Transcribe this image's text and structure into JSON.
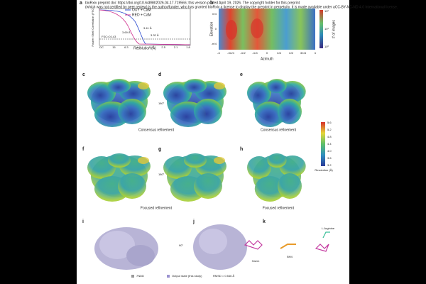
{
  "header": {
    "line1": "bioRxiv preprint doi: https://doi.org/10.64898/2026.04.17.719566; this version posted April 19, 2026. The copyright holder for this preprint",
    "line2": "(which was not certified by peer review) is the author/funder, who has granted bioRxiv a license to display the preprint in perpetuity. It is made available under aCC-BY-NC-ND 4.0 International license."
  },
  "panels": {
    "a": {
      "label": "a",
      "y_label": "Fourier Shell Correlation (FSC)",
      "x_label": "Resolution (Å)",
      "legend": [
        "OXY + CaM",
        "RED + CaM"
      ],
      "annotations": [
        "3.41 Å",
        "3.69 Å",
        "3.32 Å",
        "FSC=0.143"
      ],
      "x_ticks": [
        "DC",
        "15",
        "6.3",
        "4.2",
        "3.1",
        "2.5",
        "2.1",
        "1.8"
      ]
    },
    "b": {
      "label": "b",
      "y_label": "Elevation",
      "x_label": "Azimuth",
      "x_ticks": [
        "-π",
        "-3π/4",
        "-π/2",
        "-π/4",
        "0",
        "π/4",
        "π/2",
        "3π/4",
        "π"
      ],
      "y_ticks": [
        "π/4",
        "0",
        "-π/4"
      ],
      "colorbar_label": "# of images",
      "colorbar_ticks": [
        "10²",
        "10¹",
        "10⁰"
      ]
    },
    "c": {
      "label": "c"
    },
    "d": {
      "label": "d"
    },
    "e": {
      "label": "e"
    },
    "f": {
      "label": "f"
    },
    "g": {
      "label": "g"
    },
    "h": {
      "label": "h"
    },
    "i": {
      "label": "i",
      "legend": [
        "7NDD",
        "Output state (this study)"
      ],
      "rmsd": "RMSD = 0.546 Å"
    },
    "j": {
      "label": "j",
      "rotation": "90°"
    },
    "k": {
      "label": "k",
      "labels": [
        "Haem",
        "BH4",
        "L-Arginine"
      ]
    }
  },
  "rows": [
    {
      "caption": "Consensus refinement",
      "caption_right": "Consensus refinement",
      "rotation": "180°"
    },
    {
      "caption": "Focused refinement",
      "caption_right": "Focused refinement",
      "rotation": "180°"
    }
  ],
  "resolution_colorbar": {
    "label": "Resolution (Å)",
    "ticks": [
      "5.6",
      "5.2",
      "4.8",
      "4.4",
      "4.0",
      "3.6",
      "3.2"
    ]
  }
}
